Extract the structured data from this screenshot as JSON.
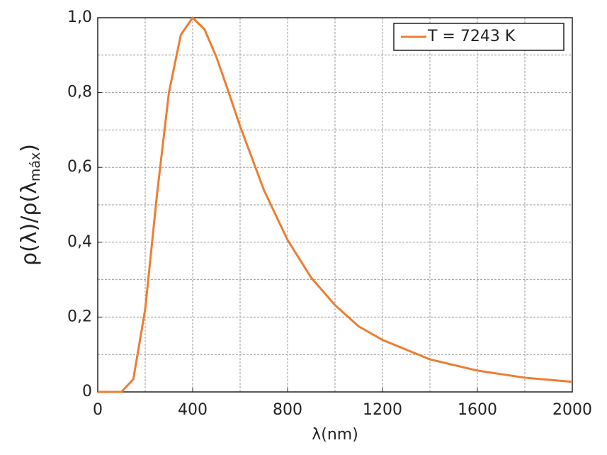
{
  "chart_data": {
    "type": "line",
    "xlabel": "λ(nm)",
    "ylabel": {
      "text": "ρ(λ)/ρ(λ",
      "subscript": "máx",
      "suffix": ")"
    },
    "x": [
      0,
      50,
      100,
      150,
      200,
      250,
      300,
      350,
      400,
      450,
      500,
      550,
      600,
      700,
      800,
      900,
      1000,
      1100,
      1200,
      1400,
      1600,
      1800,
      2000
    ],
    "series": [
      {
        "name": "T = 7243 K",
        "color": "#ee7d31",
        "values": [
          0,
          0,
          0.0003,
          0.034,
          0.221,
          0.529,
          0.8,
          0.954,
          1,
          0.969,
          0.895,
          0.804,
          0.71,
          0.54,
          0.406,
          0.305,
          0.232,
          0.175,
          0.139,
          0.087,
          0.057,
          0.038,
          0.027
        ]
      }
    ],
    "xlim": [
      0,
      2000
    ],
    "ylim": [
      0,
      1
    ],
    "xticks": [
      0,
      400,
      800,
      1200,
      1600,
      2000
    ],
    "yticks": [
      0,
      {
        "value": 0.2,
        "label": "0,2"
      },
      {
        "value": 0.4,
        "label": "0,4"
      },
      {
        "value": 0.6,
        "label": "0,6"
      },
      {
        "value": 0.8,
        "label": "0,8"
      },
      {
        "value": 1,
        "label": "1,0"
      }
    ],
    "xgrid": [
      200,
      400,
      600,
      800,
      1000,
      1200,
      1400,
      1600,
      1800
    ],
    "ygrid": [
      0.1,
      0.2,
      0.3,
      0.4,
      0.5,
      0.6,
      0.7,
      0.8,
      0.9
    ],
    "grid": true,
    "legend": "upper right"
  }
}
